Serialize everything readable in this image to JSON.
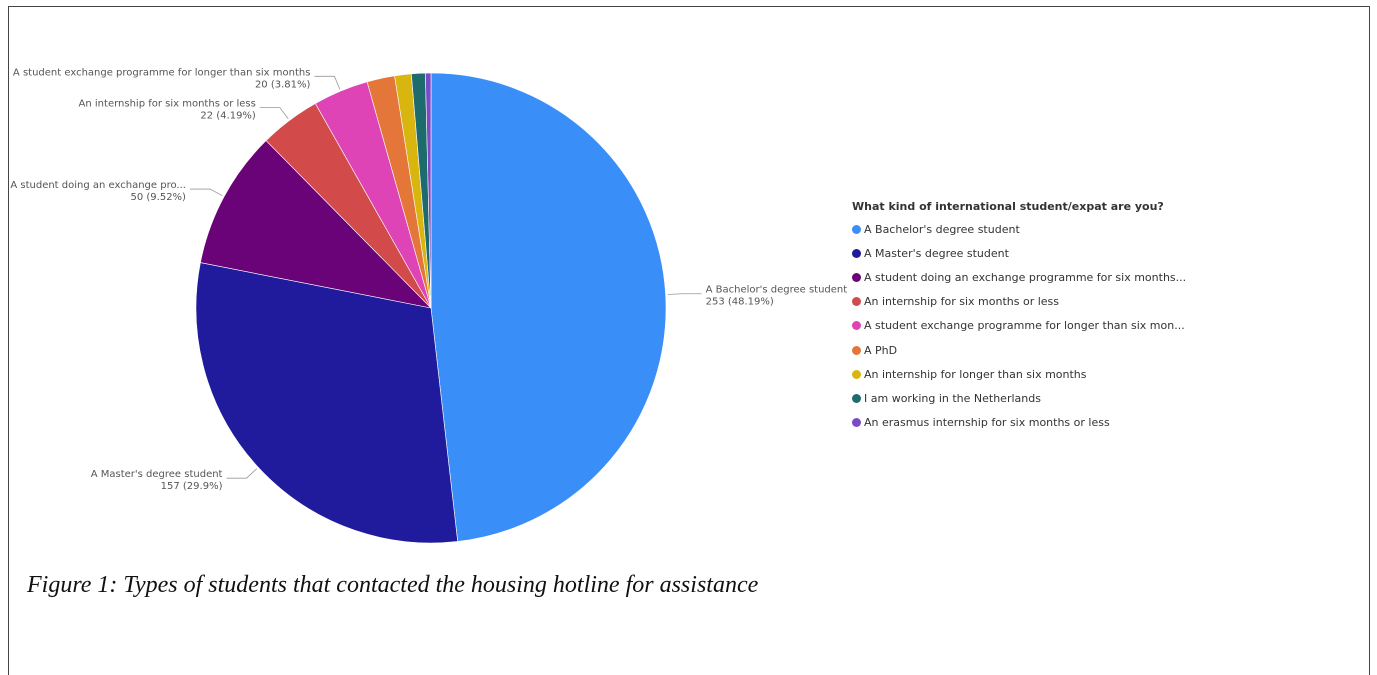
{
  "chart_data": {
    "type": "pie",
    "legend_title": "What kind of international student/expat are you?",
    "legend_position": "right",
    "slices": [
      {
        "name": "A Bachelor's degree student",
        "legend_label": "A Bachelor's degree student",
        "value": 253,
        "pct": "48.19%",
        "color": "#3a8ef8",
        "label": "A Bachelor's degree student",
        "value_label": "253 (48.19%)"
      },
      {
        "name": "A Master's degree student",
        "legend_label": "A Master's degree student",
        "value": 157,
        "pct": "29.9%",
        "color": "#1f1b9c",
        "label": "A Master's degree student",
        "value_label": "157 (29.9%)"
      },
      {
        "name": "A student doing an exchange programme for six months or less",
        "legend_label": "A student doing an exchange programme for six months...",
        "value": 50,
        "pct": "9.52%",
        "color": "#6a0278",
        "label": "A student doing an exchange pro...",
        "value_label": "50 (9.52%)"
      },
      {
        "name": "An internship for six months or less",
        "legend_label": "An internship for six months or less",
        "value": 22,
        "pct": "4.19%",
        "color": "#d24a4a",
        "label": "An internship for six months or less",
        "value_label": "22 (4.19%)"
      },
      {
        "name": "A student exchange programme for longer than six months",
        "legend_label": "A student exchange programme for longer than six mon...",
        "value": 20,
        "pct": "3.81%",
        "color": "#de44b6",
        "label": "A student exchange programme for longer than six months",
        "value_label": "20 (3.81%)"
      },
      {
        "name": "A PhD",
        "legend_label": "A PhD",
        "value": 10,
        "color": "#e5763a",
        "label": "",
        "value_label": ""
      },
      {
        "name": "An internship for longer than six months",
        "legend_label": "An internship for longer than six months",
        "value": 6,
        "color": "#d9b50f",
        "label": "",
        "value_label": ""
      },
      {
        "name": "I am working in the Netherlands",
        "legend_label": "I am working in the Netherlands",
        "value": 5,
        "color": "#1e6b6e",
        "label": "",
        "value_label": ""
      },
      {
        "name": "An erasmus internship for six months or less",
        "legend_label": "An erasmus internship for six months or less",
        "value": 2,
        "color": "#7a4bc8",
        "label": "",
        "value_label": ""
      }
    ]
  },
  "caption": "Figure 1: Types of students that contacted the housing hotline for assistance"
}
